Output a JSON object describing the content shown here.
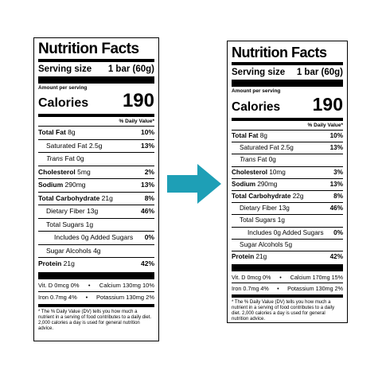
{
  "colors": {
    "arrow": "#1e9fb6"
  },
  "left": {
    "title": "Nutrition Facts",
    "serving_label": "Serving size",
    "serving_value": "1 bar (60g)",
    "amount_per_serving": "Amount per serving",
    "calories_label": "Calories",
    "calories_value": "190",
    "dv_header": "% Daily Value*",
    "total_fat_label": "Total Fat",
    "total_fat_amt": "8g",
    "total_fat_pct": "10%",
    "sat_fat_label": "Saturated Fat",
    "sat_fat_amt": "2.5g",
    "sat_fat_pct": "13%",
    "trans_fat_label": "Trans",
    "trans_fat_rest": "Fat 0g",
    "cholesterol_label": "Cholesterol",
    "cholesterol_amt": "5mg",
    "cholesterol_pct": "2%",
    "sodium_label": "Sodium",
    "sodium_amt": "290mg",
    "sodium_pct": "13%",
    "carb_label": "Total Carbohydrate",
    "carb_amt": "21g",
    "carb_pct": "8%",
    "fiber_label": "Dietary Fiber",
    "fiber_amt": "13g",
    "fiber_pct": "46%",
    "sugars_text": "Total Sugars 1g",
    "added_sugars_text": "Includes 0g Added Sugars",
    "added_sugars_pct": "0%",
    "sugar_alcohols_text": "Sugar Alcohols 4g",
    "protein_label": "Protein",
    "protein_amt": "21g",
    "protein_pct": "42%",
    "vit_d": "Vit. D 0mcg 0%",
    "bullet1": "•",
    "calcium": "Calcium 130mg 10%",
    "iron": "Iron 0.7mg 4%",
    "bullet2": "•",
    "potassium": "Potassium 130mg 2%",
    "footnote": "* The % Daily Value (DV) tells you how much a nutrient in a serving of food contributes to a daily diet. 2,000 calories a day is used for general nutrition advice."
  },
  "right": {
    "title": "Nutrition Facts",
    "serving_label": "Serving size",
    "serving_value": "1 bar (60g)",
    "amount_per_serving": "Amount per serving",
    "calories_label": "Calories",
    "calories_value": "190",
    "dv_header": "% Daily Value*",
    "total_fat_label": "Total Fat",
    "total_fat_amt": "8g",
    "total_fat_pct": "10%",
    "sat_fat_label": "Saturated Fat",
    "sat_fat_amt": "2.5g",
    "sat_fat_pct": "13%",
    "trans_fat_label": "Trans",
    "trans_fat_rest": "Fat 0g",
    "cholesterol_label": "Cholesterol",
    "cholesterol_amt": "10mg",
    "cholesterol_pct": "3%",
    "sodium_label": "Sodium",
    "sodium_amt": "290mg",
    "sodium_pct": "13%",
    "carb_label": "Total Carbohydrate",
    "carb_amt": "22g",
    "carb_pct": "8%",
    "fiber_label": "Dietary Fiber",
    "fiber_amt": "13g",
    "fiber_pct": "46%",
    "sugars_text": "Total Sugars 1g",
    "added_sugars_text": "Includes 0g Added Sugars",
    "added_sugars_pct": "0%",
    "sugar_alcohols_text": "Sugar Alcohols 5g",
    "protein_label": "Protein",
    "protein_amt": "21g",
    "protein_pct": "42%",
    "vit_d": "Vit. D 0mcg 0%",
    "bullet1": "•",
    "calcium": "Calcium 170mg 15%",
    "iron": "Iron 0.7mg 4%",
    "bullet2": "•",
    "potassium": "Potassium 130mg 2%",
    "footnote": "* The % Daily Value (DV) tells you how much a nutrient in a serving of food contributes to a daily diet. 2,000 calories a day is used for general nutrition advice."
  }
}
